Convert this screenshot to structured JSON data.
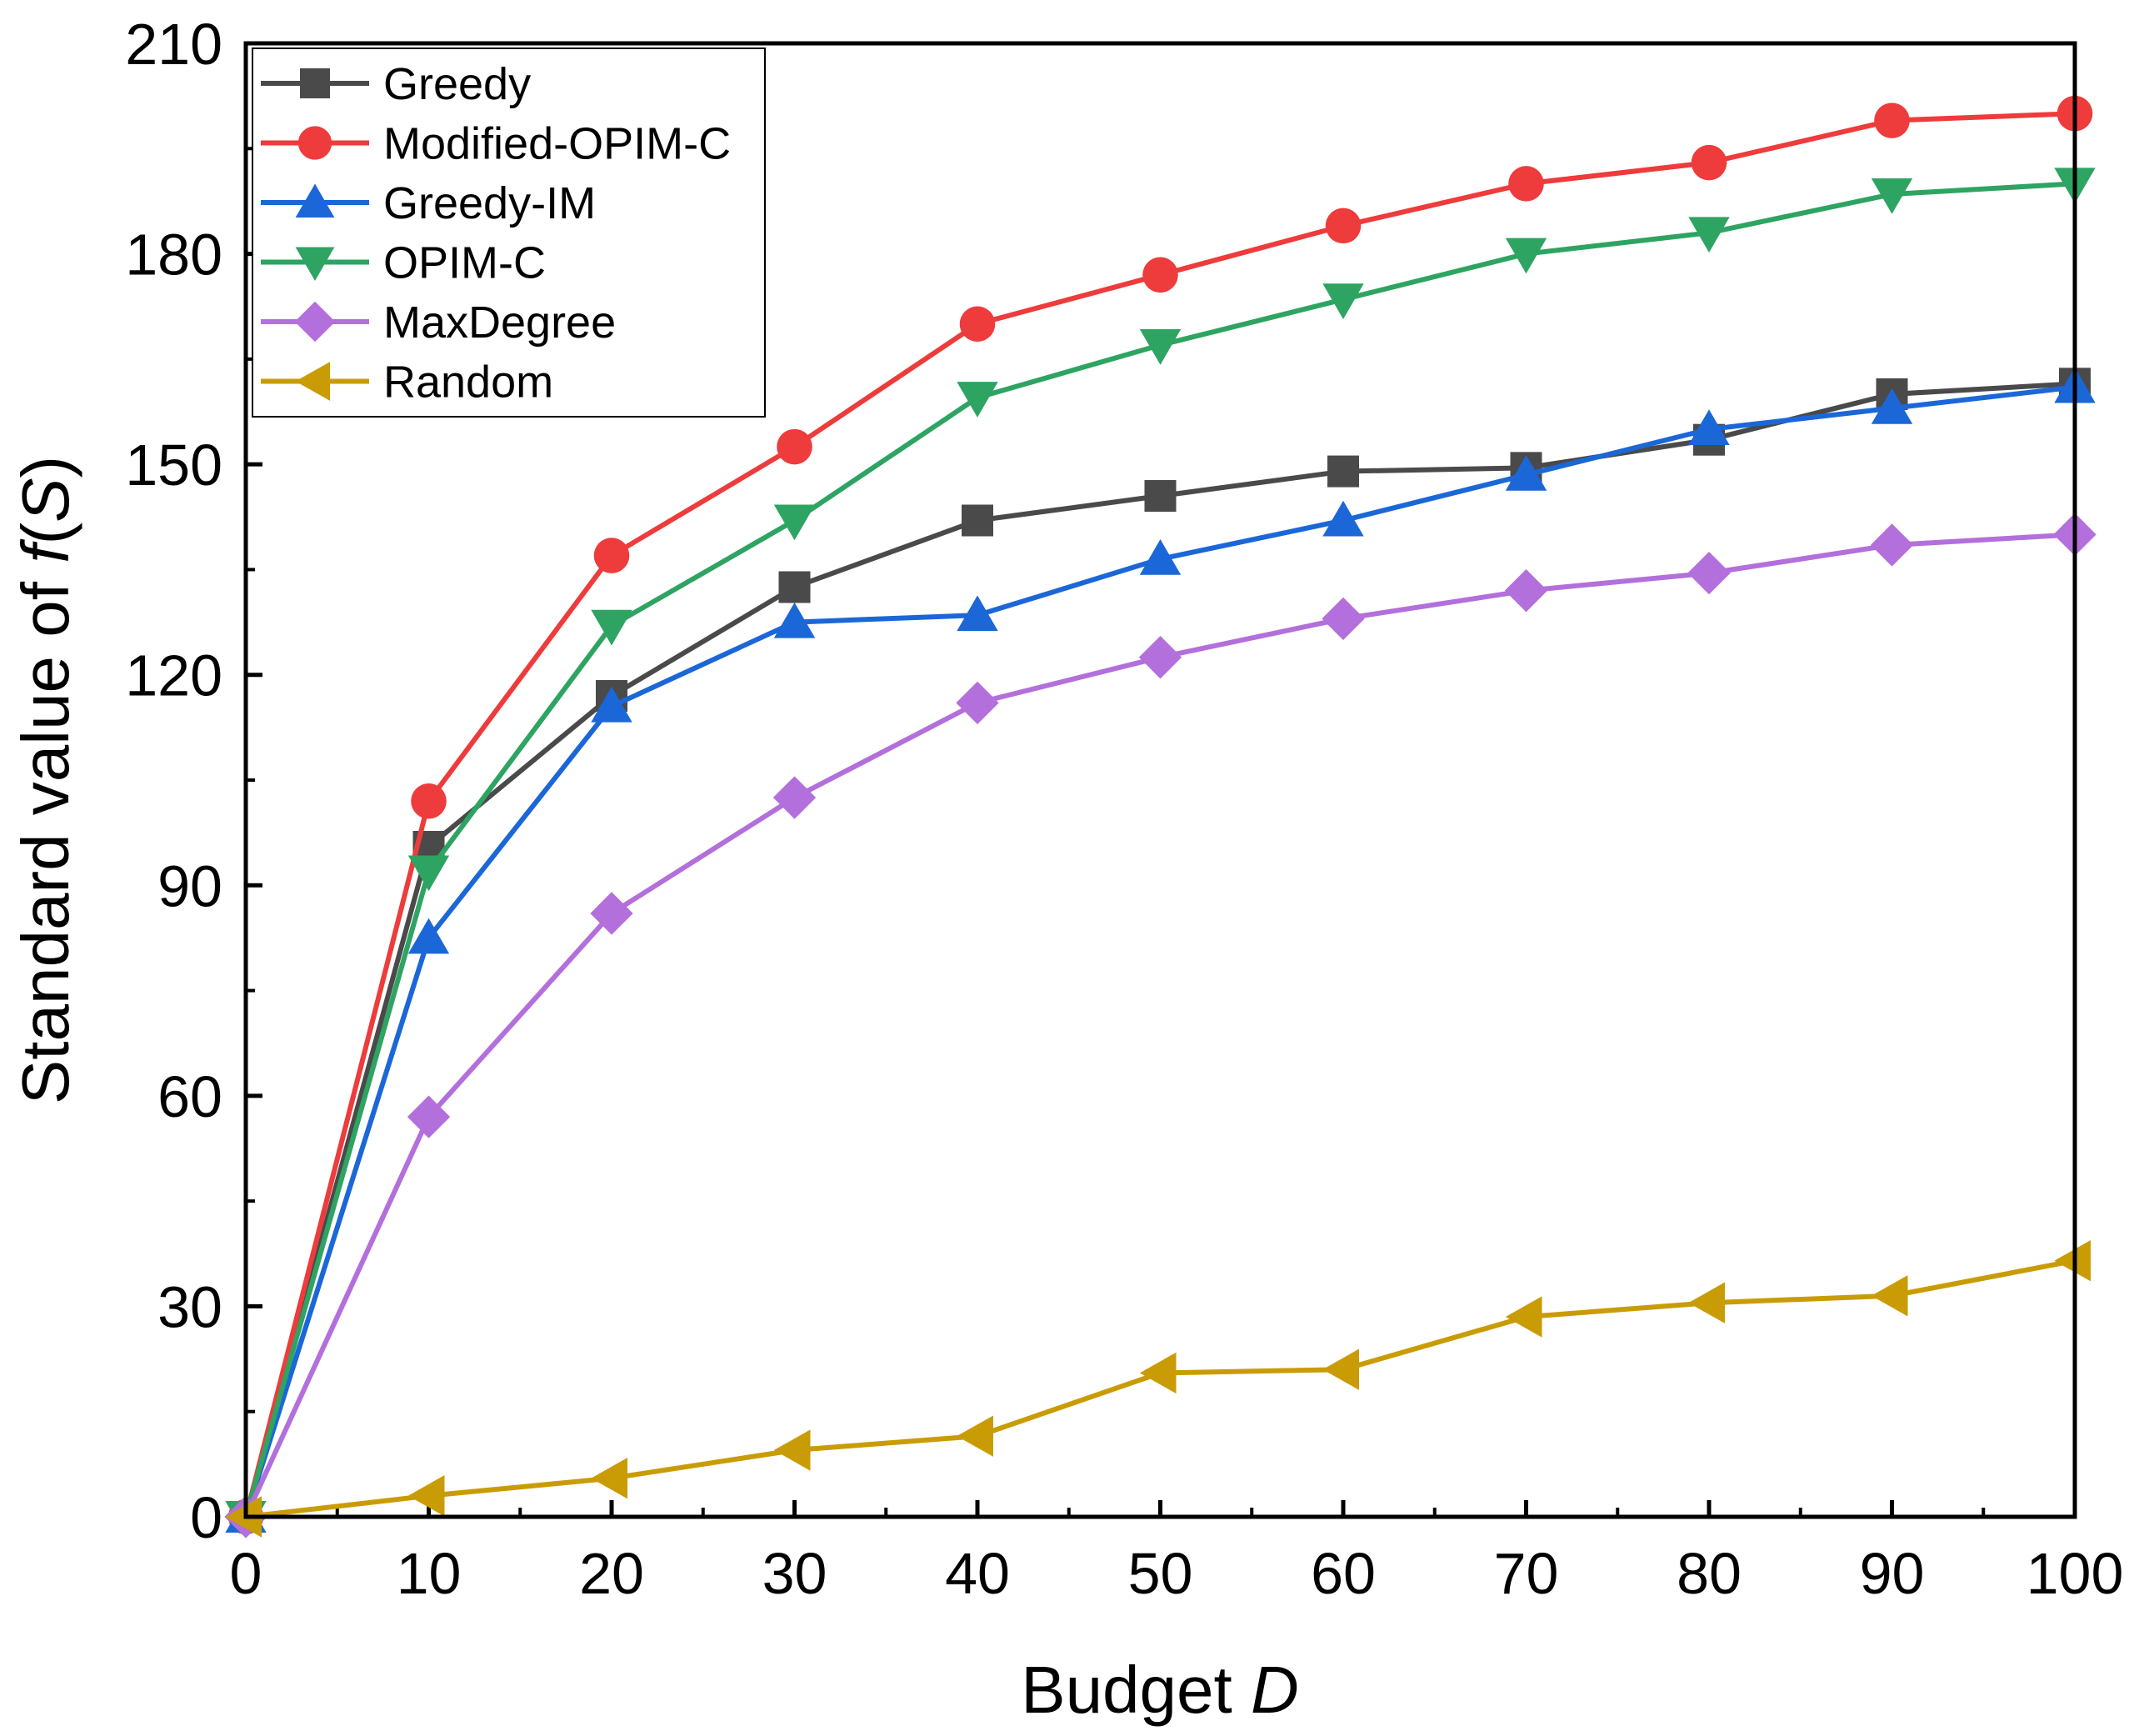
{
  "chart_data": {
    "type": "line",
    "title": "",
    "xlabel": "Budget",
    "xlabel_var": "D",
    "ylabel": "Standard value of",
    "ylabel_var_f": "f",
    "ylabel_var_s": "S",
    "xlim": [
      0,
      100
    ],
    "ylim": [
      0,
      210
    ],
    "x": [
      0,
      10,
      20,
      30,
      40,
      50,
      60,
      70,
      80,
      90,
      100
    ],
    "xticks": [
      0,
      10,
      20,
      30,
      40,
      50,
      60,
      70,
      80,
      90,
      100
    ],
    "yticks": [
      0,
      30,
      60,
      90,
      120,
      150,
      180,
      210
    ],
    "legend_position": "top-left",
    "series": [
      {
        "name": "Greedy",
        "color": "#4a4a4a",
        "marker": "square",
        "values": [
          0,
          95.5,
          117,
          132.5,
          142,
          145.5,
          149,
          149.5,
          153.5,
          160,
          161.5
        ]
      },
      {
        "name": "Modified-OPIM-C",
        "color": "#ee3b3b",
        "marker": "circle",
        "values": [
          0,
          102,
          137,
          152.5,
          170,
          177,
          184,
          190,
          193,
          199,
          200
        ]
      },
      {
        "name": "Greedy-IM",
        "color": "#1b67d8",
        "marker": "triangle-up",
        "values": [
          0,
          82.5,
          115.5,
          127.5,
          128.5,
          136.5,
          142,
          148.5,
          155,
          158,
          161
        ]
      },
      {
        "name": "OPIM-C",
        "color": "#2ea462",
        "marker": "triangle-down",
        "values": [
          0,
          92,
          127,
          142,
          159.5,
          167,
          173.5,
          180,
          183,
          188.5,
          190
        ]
      },
      {
        "name": "MaxDegree",
        "color": "#b36fdb",
        "marker": "diamond",
        "values": [
          0,
          57,
          86,
          102.5,
          116,
          122.5,
          128,
          132,
          134.5,
          138.5,
          140
        ]
      },
      {
        "name": "Random",
        "color": "#c99c06",
        "marker": "triangle-left",
        "values": [
          0,
          3,
          5.5,
          9.5,
          11.5,
          20.5,
          21,
          28.5,
          30.5,
          31.5,
          36.5
        ]
      }
    ]
  }
}
